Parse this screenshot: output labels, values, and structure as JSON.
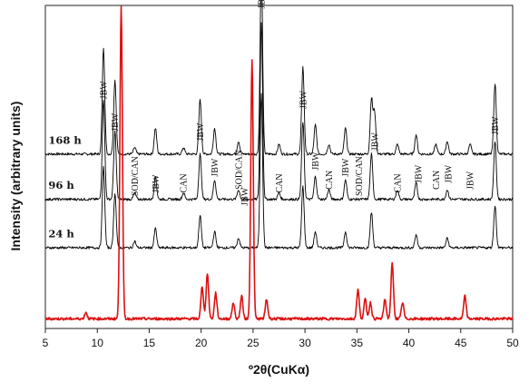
{
  "chart_data": {
    "type": "line",
    "xlabel": "º2θ(CuKα)",
    "ylabel": "Intensity (arbitrary units)",
    "xlim": [
      5,
      50
    ],
    "ylim": [
      0,
      100
    ],
    "x_ticks": [
      5,
      10,
      15,
      20,
      25,
      30,
      35,
      40,
      45,
      50
    ],
    "grid": false,
    "series": [
      {
        "name": "168 h",
        "color": "#000000",
        "baseline": 54,
        "peaks": [
          [
            10.6,
            33
          ],
          [
            11.7,
            23
          ],
          [
            13.6,
            2
          ],
          [
            15.6,
            8
          ],
          [
            18.3,
            2
          ],
          [
            19.9,
            17
          ],
          [
            21.3,
            8
          ],
          [
            23.6,
            4
          ],
          [
            25.8,
            58
          ],
          [
            27.5,
            3
          ],
          [
            29.8,
            27
          ],
          [
            31.0,
            9
          ],
          [
            32.3,
            3
          ],
          [
            33.9,
            8
          ],
          [
            36.4,
            17
          ],
          [
            36.7,
            13
          ],
          [
            38.9,
            3
          ],
          [
            40.7,
            6
          ],
          [
            42.6,
            3
          ],
          [
            43.7,
            4
          ],
          [
            45.9,
            3
          ],
          [
            48.3,
            22
          ]
        ]
      },
      {
        "name": "96 h",
        "color": "#000000",
        "baseline": 40,
        "peaks": [
          [
            10.6,
            31
          ],
          [
            11.7,
            21
          ],
          [
            13.6,
            2
          ],
          [
            15.6,
            7
          ],
          [
            18.3,
            2
          ],
          [
            19.9,
            14
          ],
          [
            21.3,
            6
          ],
          [
            23.6,
            3
          ],
          [
            25.8,
            55
          ],
          [
            27.5,
            2
          ],
          [
            29.8,
            24
          ],
          [
            31.0,
            7
          ],
          [
            32.3,
            3
          ],
          [
            33.9,
            6
          ],
          [
            36.4,
            14
          ],
          [
            38.9,
            3
          ],
          [
            40.7,
            5
          ],
          [
            43.7,
            3
          ],
          [
            48.3,
            18
          ]
        ]
      },
      {
        "name": "24 h",
        "color": "#000000",
        "baseline": 25,
        "peaks": [
          [
            10.6,
            25
          ],
          [
            11.7,
            17
          ],
          [
            13.6,
            2
          ],
          [
            15.6,
            6
          ],
          [
            19.9,
            10
          ],
          [
            21.3,
            5
          ],
          [
            23.6,
            3
          ],
          [
            25.8,
            48
          ],
          [
            29.8,
            19
          ],
          [
            31.0,
            5
          ],
          [
            33.9,
            5
          ],
          [
            36.4,
            11
          ],
          [
            40.7,
            4
          ],
          [
            43.7,
            3
          ],
          [
            48.3,
            13
          ]
        ]
      },
      {
        "name": "",
        "color": "#dd1111",
        "baseline": 3,
        "peaks": [
          [
            8.9,
            2
          ],
          [
            12.3,
            97
          ],
          [
            20.1,
            10
          ],
          [
            20.6,
            14
          ],
          [
            21.4,
            8
          ],
          [
            23.1,
            5
          ],
          [
            23.9,
            7
          ],
          [
            24.9,
            80
          ],
          [
            26.3,
            6
          ],
          [
            35.1,
            9
          ],
          [
            35.8,
            6
          ],
          [
            36.3,
            5
          ],
          [
            37.7,
            6
          ],
          [
            38.4,
            17
          ],
          [
            39.4,
            5
          ],
          [
            45.4,
            7
          ]
        ]
      }
    ],
    "annotations": [
      "JBW",
      "JBW",
      "SOD/CAN",
      "JBW",
      "CAN",
      "JBW",
      "JBW",
      "SOD/CAN",
      "JBW",
      "JBW",
      "CAN",
      "JBW",
      "JBW",
      "CAN",
      "JBW",
      "SOD/CAN",
      "JBW",
      "CAN",
      "JBW",
      "CAN",
      "JBW",
      "JBW",
      "JBW"
    ],
    "annotation_x": [
      10.6,
      11.7,
      13.6,
      15.6,
      18.3,
      19.9,
      21.3,
      23.6,
      24.2,
      25.8,
      27.5,
      29.8,
      31.0,
      32.3,
      33.9,
      35.2,
      36.7,
      38.9,
      40.9,
      42.6,
      43.8,
      45.9,
      48.3
    ],
    "annotation_y": [
      71,
      61,
      41,
      42,
      42,
      58,
      47,
      43,
      38,
      99,
      42,
      68,
      49,
      43,
      47,
      41,
      55,
      42,
      45,
      43,
      45,
      43,
      60
    ]
  }
}
